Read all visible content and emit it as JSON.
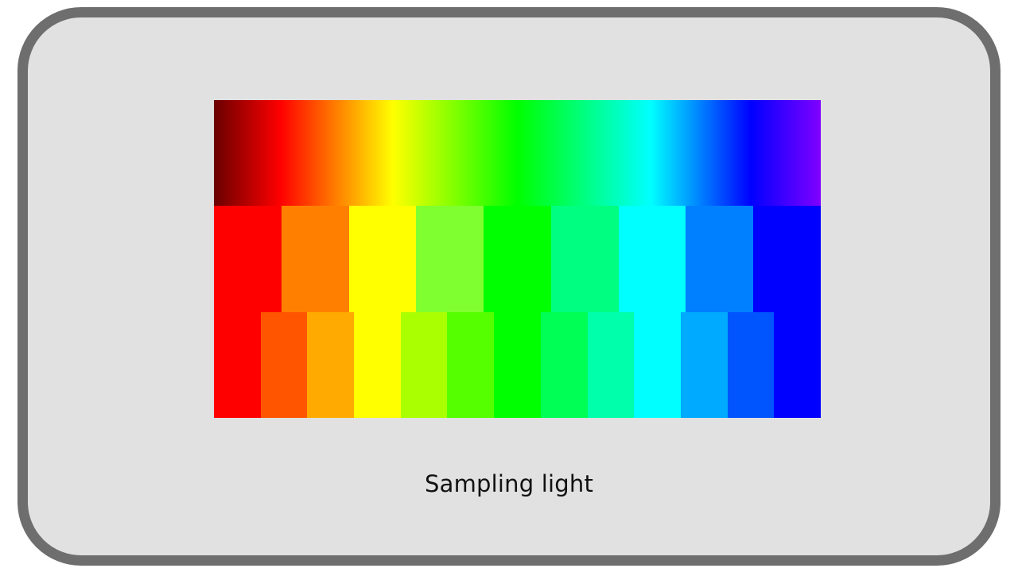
{
  "caption": "Sampling light",
  "gradient_stops": [
    {
      "color": "#6a0000",
      "offset": 0
    },
    {
      "color": "#ff0000",
      "offset": 0.11
    },
    {
      "color": "#ffff00",
      "offset": 0.295
    },
    {
      "color": "#00ff00",
      "offset": 0.5
    },
    {
      "color": "#00ffff",
      "offset": 0.72
    },
    {
      "color": "#0000ff",
      "offset": 0.885
    },
    {
      "color": "#8000ff",
      "offset": 1
    }
  ],
  "band_9": [
    "#ff0000",
    "#ff8000",
    "#ffff00",
    "#80ff30",
    "#00ff00",
    "#00ff80",
    "#00ffff",
    "#0080ff",
    "#0000ff"
  ],
  "band_13": [
    "#ff0000",
    "#ff5500",
    "#ffaa00",
    "#ffff00",
    "#aaff00",
    "#55ff00",
    "#00ff00",
    "#00ff55",
    "#00ffaa",
    "#00ffff",
    "#00aaff",
    "#0055ff",
    "#0000ff"
  ]
}
